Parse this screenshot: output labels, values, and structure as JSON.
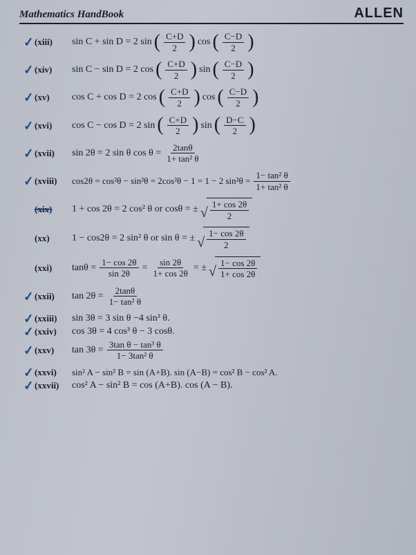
{
  "header": {
    "book_title": "Mathematics HandBook",
    "brand": "ALLEN"
  },
  "formulas": [
    {
      "roman": "(xiii)",
      "check": true,
      "strike": false
    },
    {
      "roman": "(xiv)",
      "check": true,
      "strike": false
    },
    {
      "roman": "(xv)",
      "check": true,
      "strike": false
    },
    {
      "roman": "(xvi)",
      "check": true,
      "strike": false
    },
    {
      "roman": "(xvii)",
      "check": true,
      "strike": false
    },
    {
      "roman": "(xviii)",
      "check": true,
      "strike": false
    },
    {
      "roman": "(xix)",
      "check": false,
      "strike": true
    },
    {
      "roman": "(xx)",
      "check": false,
      "strike": false
    },
    {
      "roman": "(xxi)",
      "check": false,
      "strike": false
    },
    {
      "roman": "(xxii)",
      "check": true,
      "strike": false
    },
    {
      "roman": "(xxiii)",
      "check": true,
      "strike": false
    },
    {
      "roman": "(xxiv)",
      "check": true,
      "strike": false
    },
    {
      "roman": "(xxv)",
      "check": true,
      "strike": false
    },
    {
      "roman": "(xxvi)",
      "check": true,
      "strike": false
    },
    {
      "roman": "(xxvii)",
      "check": true,
      "strike": false
    }
  ],
  "text": {
    "f13": {
      "lhs": "sin C + sin D = 2 sin",
      "mid": "cos",
      "frac1_num": "C+D",
      "frac1_den": "2",
      "frac2_num": "C−D",
      "frac2_den": "2"
    },
    "f14": {
      "lhs": "sin C − sin D = 2 cos",
      "mid": "sin",
      "frac1_num": "C+D",
      "frac1_den": "2",
      "frac2_num": "C−D",
      "frac2_den": "2"
    },
    "f15": {
      "lhs": "cos C + cos D = 2 cos",
      "mid": "cos",
      "frac1_num": "C+D",
      "frac1_den": "2",
      "frac2_num": "C−D",
      "frac2_den": "2"
    },
    "f16": {
      "lhs": "cos C − cos D = 2 sin",
      "mid": "sin",
      "frac1_num": "C+D",
      "frac1_den": "2",
      "frac2_num": "D−C",
      "frac2_den": "2"
    },
    "f17": {
      "lhs": "sin 2θ = 2 sin θ cos θ =",
      "frac_num": "2tanθ",
      "frac_den": "1+ tan² θ"
    },
    "f18": {
      "lhs": "cos2θ = cos²θ − sin²θ = 2cos²θ − 1 = 1 − 2 sin²θ =",
      "frac_num": "1− tan² θ",
      "frac_den": "1+ tan² θ"
    },
    "f19": {
      "lhs": "1 + cos 2θ = 2 cos² θ or  cosθ = ±",
      "sq_num": "1+ cos 2θ",
      "sq_den": "2"
    },
    "f20": {
      "lhs": "1 − cos2θ = 2 sin² θ or  sin θ = ±",
      "sq_num": "1− cos 2θ",
      "sq_den": "2"
    },
    "f21": {
      "lhs": "tanθ =",
      "f1_num": "1− cos 2θ",
      "f1_den": "sin 2θ",
      "eq1": "=",
      "f2_num": "sin 2θ",
      "f2_den": "1+ cos 2θ",
      "eq2": "= ±",
      "sq_num": "1− cos 2θ",
      "sq_den": "1+ cos 2θ"
    },
    "f22": {
      "lhs": "tan 2θ =",
      "frac_num": "2tanθ",
      "frac_den": "1− tan² θ"
    },
    "f23": {
      "full": "sin 3θ = 3 sin θ −4 sin³ θ."
    },
    "f24": {
      "full": "cos 3θ = 4 cos³ θ − 3 cosθ."
    },
    "f25": {
      "lhs": "tan 3θ =",
      "frac_num": "3tan θ − tan³ θ",
      "frac_den": "1− 3tan² θ"
    },
    "f26": {
      "full": "sin² A − sin² B = sin (A+B). sin (A−B) = cos² B − cos² A."
    },
    "f27": {
      "full": "cos² A − sin² B = cos (A+B). cos (A − B)."
    }
  },
  "colors": {
    "text": "#1a1a2e",
    "check": "#1a4a8a",
    "bg_light": "#c2c5cd",
    "bg_dark": "#9ca0a8"
  }
}
